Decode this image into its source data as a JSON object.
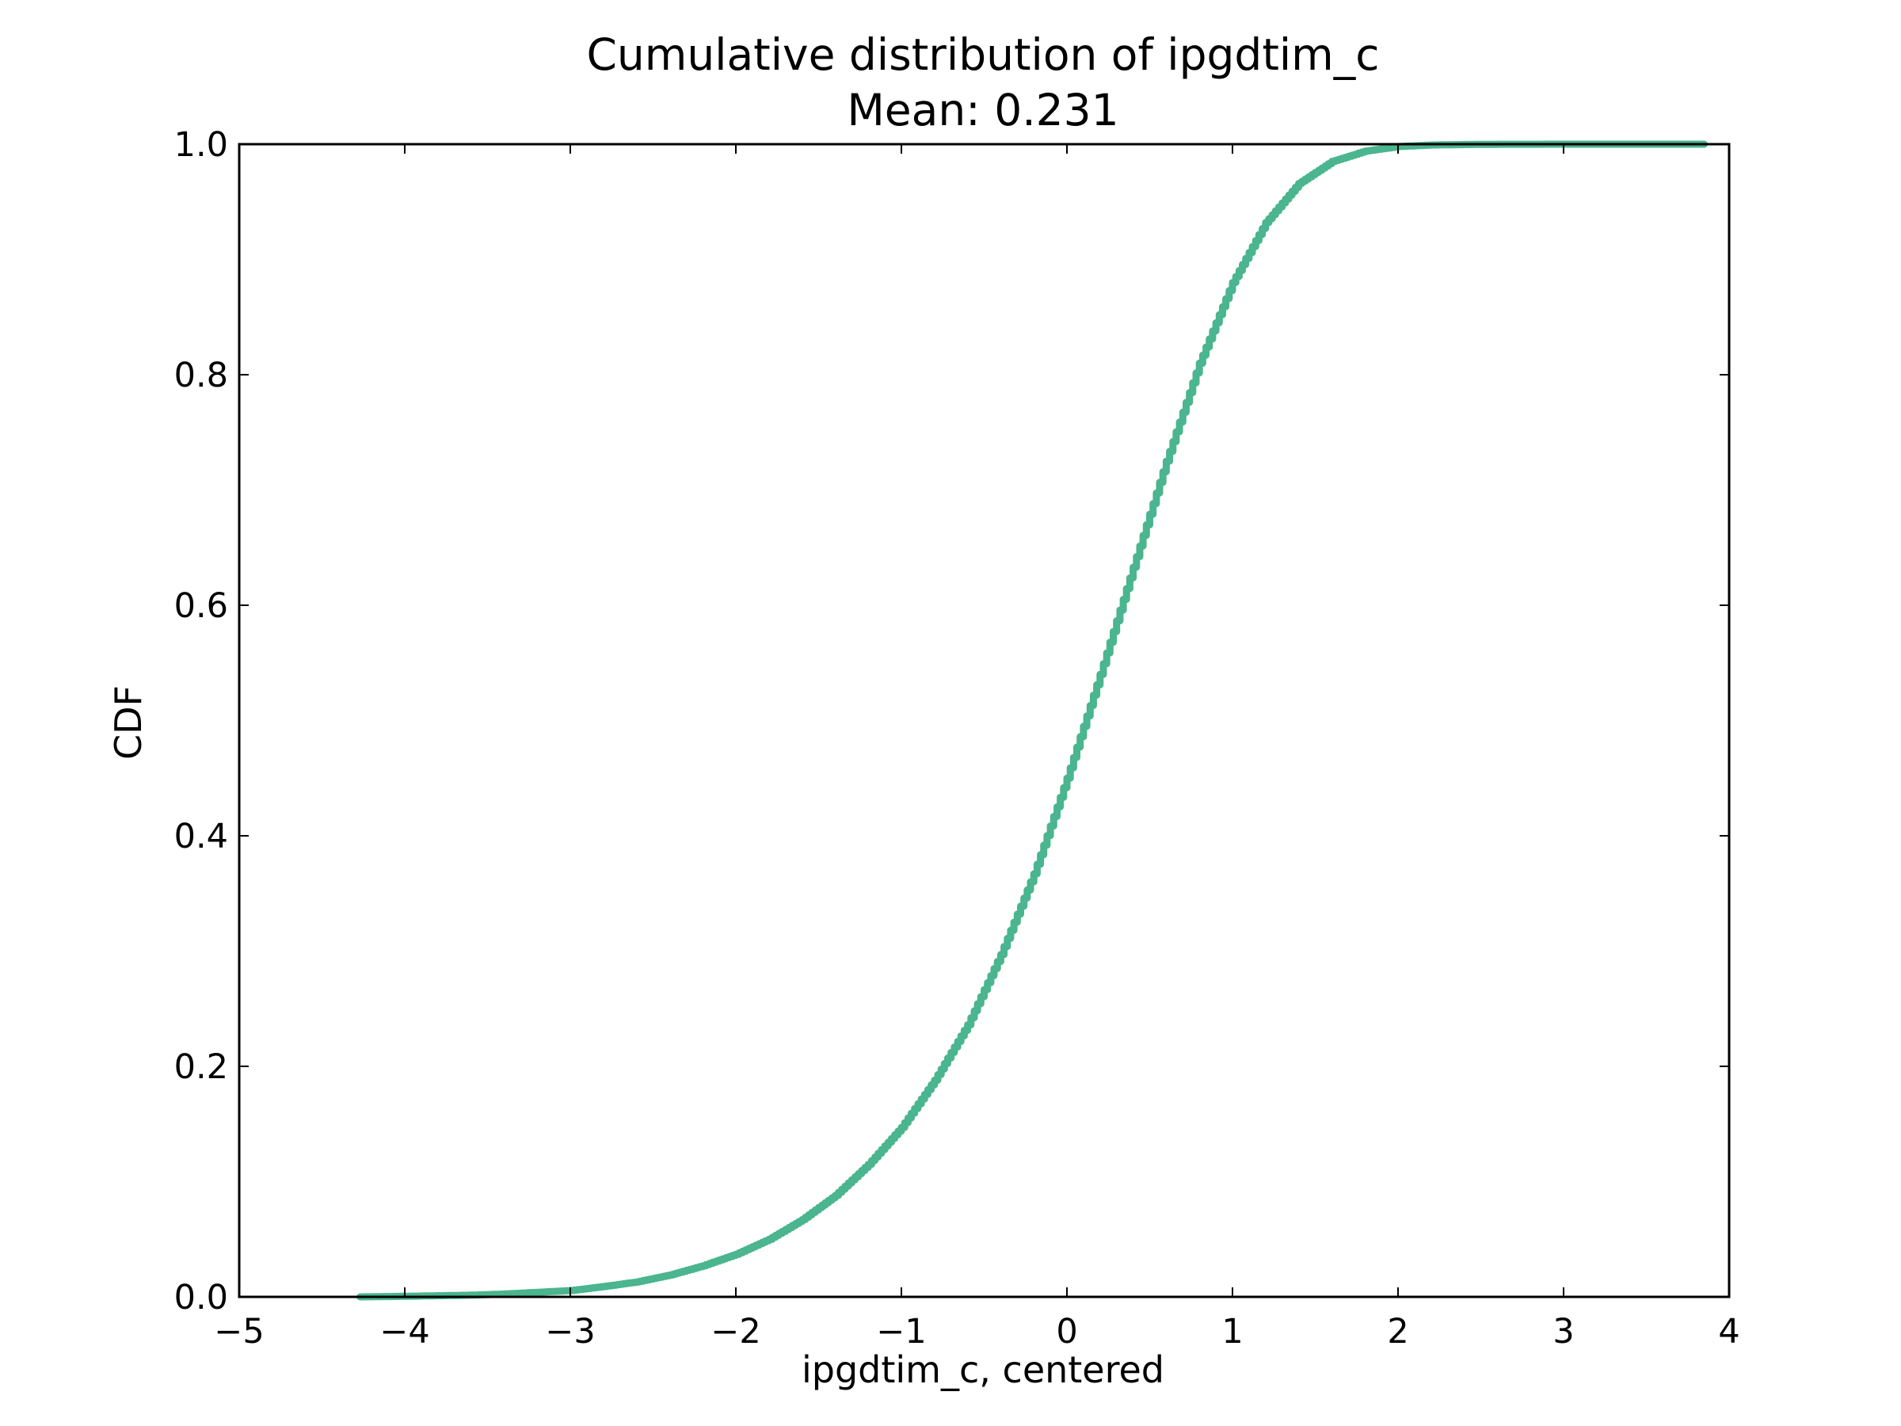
{
  "chart_data": {
    "type": "line",
    "title": "Cumulative distribution of ipgdtim_c",
    "subtitle": "Mean: 0.231",
    "xlabel": "ipgdtim_c, centered",
    "ylabel": "CDF",
    "xlim": [
      -5,
      4
    ],
    "ylim": [
      0.0,
      1.0
    ],
    "xticks": [
      -5,
      -4,
      -3,
      -2,
      -1,
      0,
      1,
      2,
      3,
      4
    ],
    "xtick_labels": [
      "−5",
      "−4",
      "−3",
      "−2",
      "−1",
      "0",
      "1",
      "2",
      "3",
      "4"
    ],
    "yticks": [
      0.0,
      0.2,
      0.4,
      0.6,
      0.8,
      1.0
    ],
    "ytick_labels": [
      "0.0",
      "0.2",
      "0.4",
      "0.6",
      "0.8",
      "1.0"
    ],
    "grid": false,
    "legend": "none",
    "line_color": "#4ab58f",
    "series": [
      {
        "style": "step",
        "x": [
          -4.27,
          -4.0,
          -3.8,
          -3.6,
          -3.4,
          -3.2,
          -3.0,
          -2.8,
          -2.6,
          -2.4,
          -2.2,
          -2.0,
          -1.8,
          -1.6,
          -1.4,
          -1.2,
          -1.0,
          -0.8,
          -0.6,
          -0.4,
          -0.2,
          0.0,
          0.2,
          0.4,
          0.6,
          0.8,
          1.0,
          1.2,
          1.4,
          1.6,
          1.8,
          2.0,
          2.2,
          2.4,
          2.6,
          2.8,
          3.0,
          3.2,
          3.4,
          3.6,
          3.85
        ],
        "y": [
          0.0,
          0.0005,
          0.001,
          0.0015,
          0.0025,
          0.004,
          0.0055,
          0.009,
          0.013,
          0.019,
          0.027,
          0.037,
          0.05,
          0.067,
          0.088,
          0.115,
          0.147,
          0.188,
          0.236,
          0.297,
          0.367,
          0.45,
          0.54,
          0.633,
          0.725,
          0.81,
          0.88,
          0.932,
          0.966,
          0.985,
          0.994,
          0.998,
          0.9993,
          0.9997,
          0.9999,
          0.99995,
          1.0,
          1.0,
          1.0,
          1.0,
          1.0
        ]
      }
    ]
  }
}
